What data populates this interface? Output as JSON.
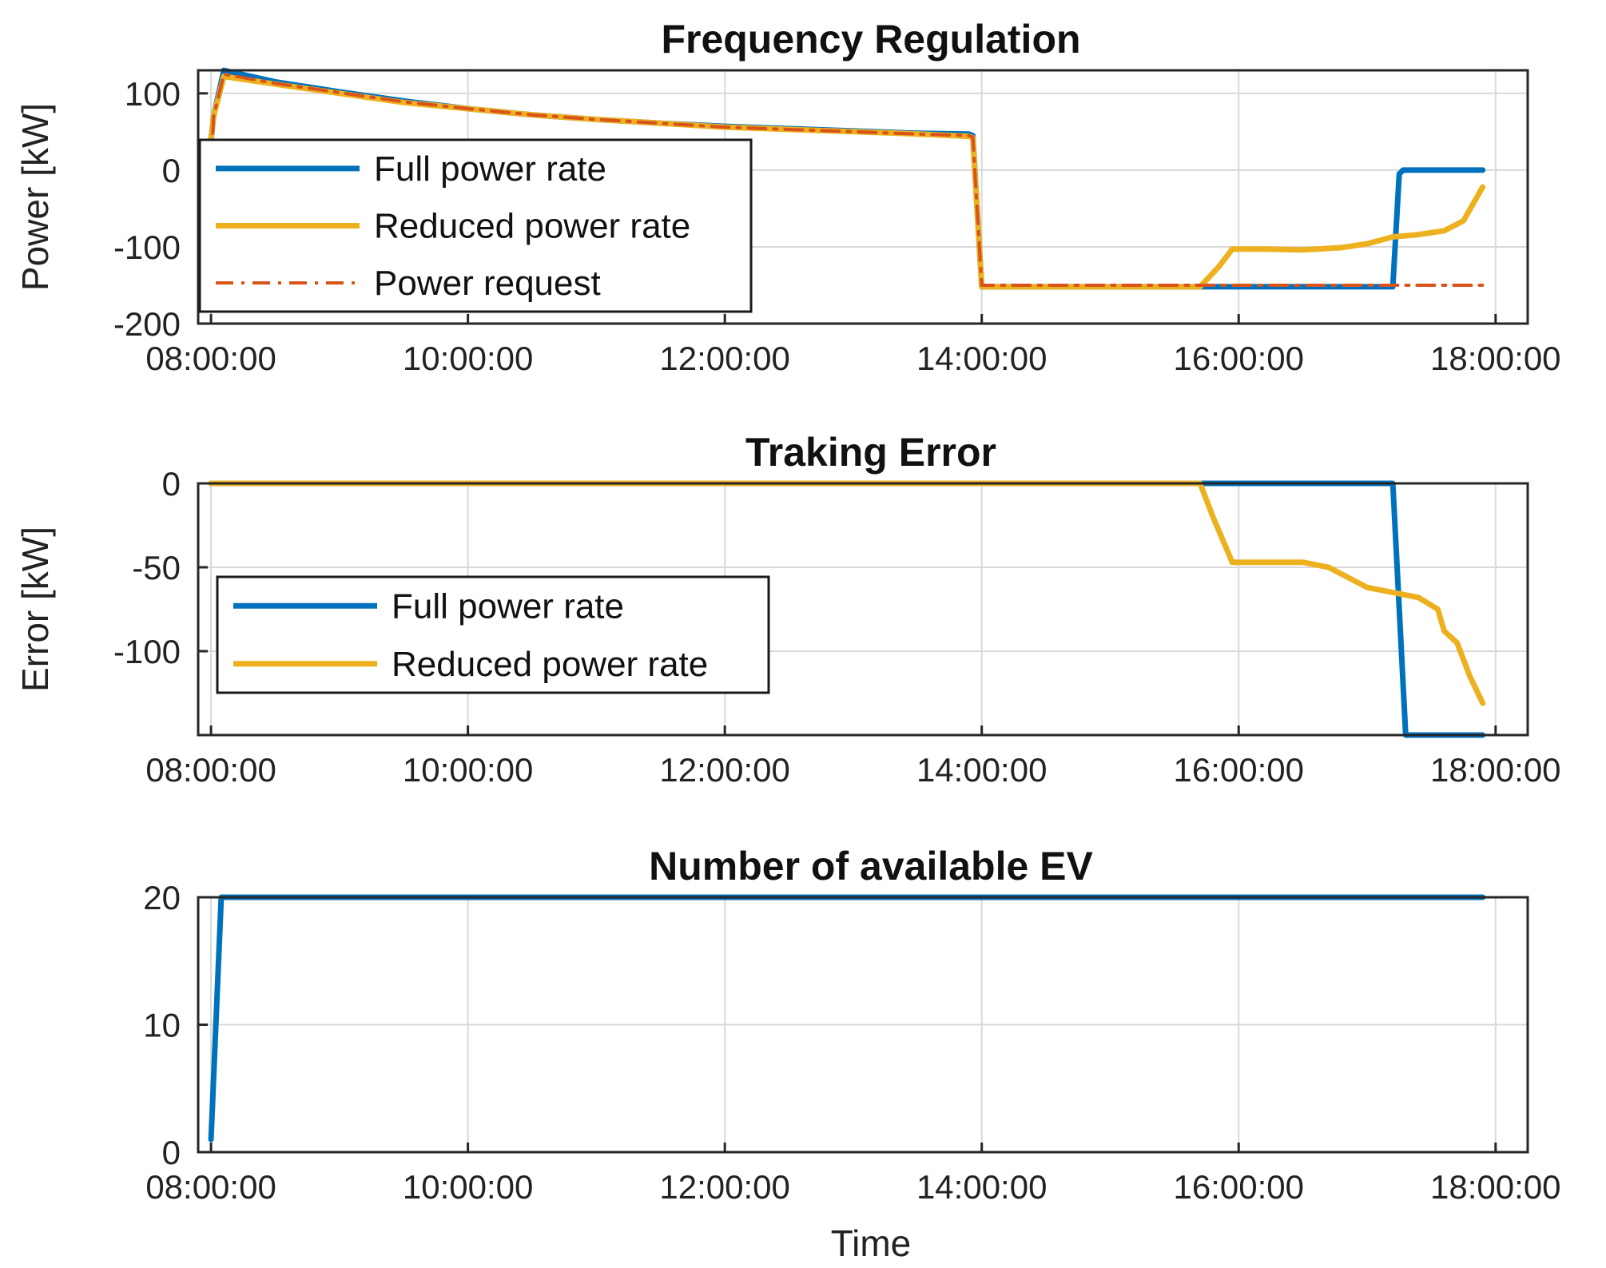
{
  "colors": {
    "full": "#0072BD",
    "reduced": "#EDB120",
    "request": "#D95319"
  },
  "chart_data": [
    {
      "type": "line",
      "title": "Frequency Regulation",
      "xlabel": "",
      "ylabel": "Power [kW]",
      "xlim": [
        7.9,
        18.25
      ],
      "ylim": [
        -200,
        130
      ],
      "xticks": [
        8,
        10,
        12,
        14,
        16,
        18
      ],
      "xtick_labels": [
        "08:00:00",
        "10:00:00",
        "12:00:00",
        "14:00:00",
        "16:00:00",
        "18:00:00"
      ],
      "yticks": [
        100,
        0,
        -100,
        -200
      ],
      "ytick_labels": [
        "100",
        "0",
        "-100",
        "-200"
      ],
      "legend_position": "upper-left",
      "series": [
        {
          "name": "Full power rate",
          "style": "solid",
          "color": "full",
          "x": [
            8.0,
            8.02,
            8.1,
            8.5,
            9.0,
            9.5,
            10.0,
            10.5,
            11.0,
            11.5,
            12.0,
            12.5,
            13.0,
            13.5,
            13.9,
            13.93,
            14.0,
            14.5,
            15.0,
            15.5,
            16.0,
            16.5,
            17.0,
            17.2,
            17.25,
            17.28,
            17.5,
            17.9
          ],
          "y": [
            40,
            70,
            130,
            115,
            102,
            90,
            80,
            72,
            66,
            61,
            57,
            54,
            51,
            48,
            47,
            45,
            -152,
            -152,
            -152,
            -152,
            -152,
            -152,
            -152,
            -152,
            -5,
            0,
            0,
            0
          ]
        },
        {
          "name": "Reduced power rate",
          "style": "solid",
          "color": "reduced",
          "x": [
            8.0,
            8.02,
            8.1,
            8.5,
            9.0,
            9.5,
            10.0,
            10.5,
            11.0,
            11.5,
            12.0,
            12.5,
            13.0,
            13.5,
            13.9,
            13.93,
            14.0,
            14.5,
            15.0,
            15.5,
            15.7,
            15.85,
            15.95,
            16.2,
            16.5,
            16.8,
            17.0,
            17.2,
            17.4,
            17.6,
            17.75,
            17.9
          ],
          "y": [
            40,
            70,
            122,
            112,
            100,
            88,
            80,
            72,
            66,
            61,
            56,
            53,
            50,
            47,
            44,
            42,
            -152,
            -152,
            -152,
            -152,
            -152,
            -125,
            -103,
            -103,
            -104,
            -101,
            -96,
            -87,
            -84,
            -79,
            -66,
            -22
          ]
        },
        {
          "name": "Power request",
          "style": "dashdot",
          "color": "request",
          "x": [
            8.0,
            8.02,
            8.1,
            8.5,
            9.0,
            9.5,
            10.0,
            10.5,
            11.0,
            11.5,
            12.0,
            12.5,
            13.0,
            13.5,
            13.9,
            13.93,
            14.0,
            14.5,
            15.0,
            15.5,
            16.0,
            16.5,
            17.0,
            17.5,
            17.9
          ],
          "y": [
            0,
            70,
            125,
            113,
            101,
            89,
            80,
            72,
            66,
            61,
            56,
            53,
            50,
            47,
            45,
            43,
            -150,
            -150,
            -150,
            -150,
            -150,
            -150,
            -150,
            -150,
            -150
          ]
        }
      ]
    },
    {
      "type": "line",
      "title": "Traking Error",
      "xlabel": "",
      "ylabel": "Error [kW]",
      "xlim": [
        7.9,
        18.25
      ],
      "ylim": [
        -150,
        0
      ],
      "xticks": [
        8,
        10,
        12,
        14,
        16,
        18
      ],
      "xtick_labels": [
        "08:00:00",
        "10:00:00",
        "12:00:00",
        "14:00:00",
        "16:00:00",
        "18:00:00"
      ],
      "yticks": [
        0,
        -50,
        -100
      ],
      "ytick_labels": [
        "0",
        "-50",
        "-100"
      ],
      "legend_position": "lower-left",
      "series": [
        {
          "name": "Full power rate",
          "style": "solid",
          "color": "full",
          "x": [
            8.0,
            15.7,
            16.0,
            16.5,
            17.0,
            17.2,
            17.3,
            17.5,
            17.9
          ],
          "y": [
            0,
            0,
            0,
            0,
            0,
            0,
            -150,
            -150,
            -150
          ]
        },
        {
          "name": "Reduced power rate",
          "style": "solid",
          "color": "reduced",
          "x": [
            8.0,
            15.7,
            15.8,
            15.9,
            15.95,
            16.2,
            16.5,
            16.7,
            16.9,
            17.0,
            17.2,
            17.4,
            17.55,
            17.6,
            17.7,
            17.8,
            17.9
          ],
          "y": [
            0,
            0,
            -20,
            -38,
            -47,
            -47,
            -47,
            -50,
            -58,
            -62,
            -65,
            -68,
            -75,
            -88,
            -95,
            -115,
            -131
          ]
        }
      ]
    },
    {
      "type": "line",
      "title": "Number of available EV",
      "xlabel": "Time",
      "ylabel": "",
      "xlim": [
        7.9,
        18.25
      ],
      "ylim": [
        0,
        20
      ],
      "xticks": [
        8,
        10,
        12,
        14,
        16,
        18
      ],
      "xtick_labels": [
        "08:00:00",
        "10:00:00",
        "12:00:00",
        "14:00:00",
        "16:00:00",
        "18:00:00"
      ],
      "yticks": [
        20,
        10,
        0
      ],
      "ytick_labels": [
        "20",
        "10",
        "0"
      ],
      "legend_position": "none",
      "series": [
        {
          "name": "Number of available EV",
          "style": "solid",
          "color": "full",
          "x": [
            8.0,
            8.08,
            8.5,
            10.0,
            12.0,
            14.0,
            16.0,
            17.9
          ],
          "y": [
            1,
            20,
            20,
            20,
            20,
            20,
            20,
            20
          ]
        }
      ]
    }
  ]
}
